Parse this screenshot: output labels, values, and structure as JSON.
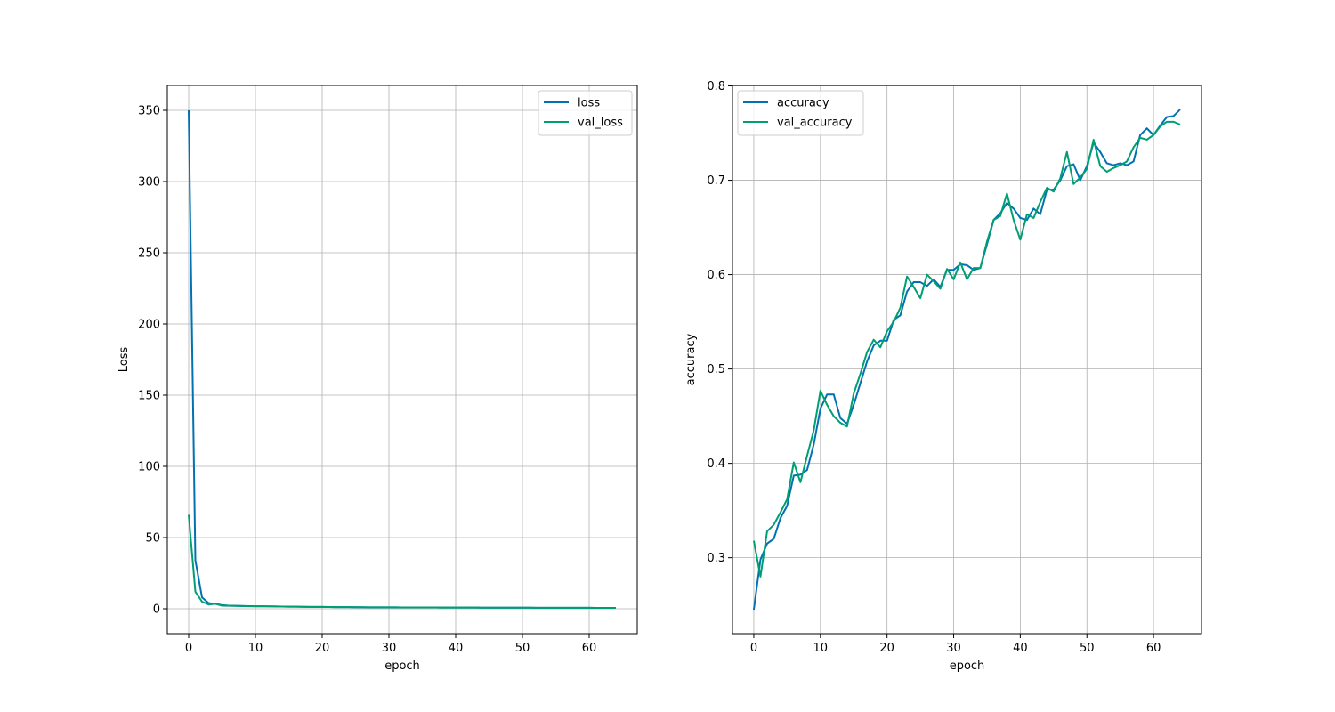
{
  "chart_data": [
    {
      "type": "line",
      "title": "",
      "xlabel": "epoch",
      "ylabel": "Loss",
      "xlim": [
        -3.2,
        67.2
      ],
      "ylim": [
        -17.5,
        367.5
      ],
      "xticks": [
        0,
        10,
        20,
        30,
        40,
        50,
        60
      ],
      "yticks": [
        0,
        50,
        100,
        150,
        200,
        250,
        300,
        350
      ],
      "xtick_labels": [
        "0",
        "10",
        "20",
        "30",
        "40",
        "50",
        "60"
      ],
      "ytick_labels": [
        "0",
        "50",
        "100",
        "150",
        "200",
        "250",
        "300",
        "350"
      ],
      "grid": true,
      "legend_position": "top-right",
      "series": [
        {
          "name": "loss",
          "color": "#0072B2",
          "x": [
            0,
            1,
            2,
            3,
            4,
            5,
            6,
            7,
            8,
            9,
            10,
            11,
            12,
            13,
            14,
            15,
            16,
            17,
            18,
            19,
            20,
            21,
            22,
            23,
            24,
            25,
            26,
            27,
            28,
            29,
            30,
            31,
            32,
            33,
            34,
            35,
            36,
            37,
            38,
            39,
            40,
            41,
            42,
            43,
            44,
            45,
            46,
            47,
            48,
            49,
            50,
            51,
            52,
            53,
            54,
            55,
            56,
            57,
            58,
            59,
            60,
            61,
            62,
            63,
            64
          ],
          "y": [
            350,
            34,
            8,
            4,
            3.5,
            2.6,
            2.2,
            2.1,
            2.0,
            1.9,
            1.8,
            1.8,
            1.7,
            1.7,
            1.6,
            1.5,
            1.45,
            1.4,
            1.35,
            1.3,
            1.3,
            1.25,
            1.2,
            1.2,
            1.15,
            1.1,
            1.1,
            1.05,
            1.05,
            1.0,
            1.0,
            0.98,
            0.96,
            0.95,
            0.93,
            0.92,
            0.9,
            0.9,
            0.88,
            0.87,
            0.86,
            0.85,
            0.84,
            0.83,
            0.82,
            0.81,
            0.8,
            0.79,
            0.78,
            0.77,
            0.76,
            0.75,
            0.74,
            0.73,
            0.72,
            0.71,
            0.7,
            0.7,
            0.69,
            0.68,
            0.67,
            0.66,
            0.65,
            0.64,
            0.63
          ]
        },
        {
          "name": "val_loss",
          "color": "#009E73",
          "x": [
            0,
            1,
            2,
            3,
            4,
            5,
            6,
            7,
            8,
            9,
            10,
            11,
            12,
            13,
            14,
            15,
            16,
            17,
            18,
            19,
            20,
            21,
            22,
            23,
            24,
            25,
            26,
            27,
            28,
            29,
            30,
            31,
            32,
            33,
            34,
            35,
            36,
            37,
            38,
            39,
            40,
            41,
            42,
            43,
            44,
            45,
            46,
            47,
            48,
            49,
            50,
            51,
            52,
            53,
            54,
            55,
            56,
            57,
            58,
            59,
            60,
            61,
            62,
            63,
            64
          ],
          "y": [
            66,
            12,
            5,
            3,
            3.5,
            2.2,
            2.1,
            2.0,
            1.9,
            1.8,
            1.7,
            1.75,
            1.7,
            1.6,
            1.55,
            1.5,
            1.45,
            1.4,
            1.35,
            1.3,
            1.3,
            1.25,
            1.2,
            1.2,
            1.15,
            1.1,
            1.1,
            1.05,
            1.05,
            1.0,
            1.0,
            0.98,
            0.96,
            0.95,
            0.93,
            0.92,
            0.9,
            0.9,
            0.88,
            0.87,
            0.86,
            0.85,
            0.84,
            0.83,
            0.82,
            0.81,
            0.8,
            0.79,
            0.78,
            0.77,
            0.76,
            0.75,
            0.74,
            0.73,
            0.72,
            0.71,
            0.7,
            0.7,
            0.69,
            0.68,
            0.67,
            0.66,
            0.65,
            0.64,
            0.63
          ]
        }
      ]
    },
    {
      "type": "line",
      "title": "",
      "xlabel": "epoch",
      "ylabel": "accuracy",
      "xlim": [
        -3.2,
        67.2
      ],
      "ylim": [
        0.2195,
        0.8005
      ],
      "xticks": [
        0,
        10,
        20,
        30,
        40,
        50,
        60
      ],
      "yticks": [
        0.3,
        0.4,
        0.5,
        0.6,
        0.7,
        0.8
      ],
      "xtick_labels": [
        "0",
        "10",
        "20",
        "30",
        "40",
        "50",
        "60"
      ],
      "ytick_labels": [
        "0.3",
        "0.4",
        "0.5",
        "0.6",
        "0.7",
        "0.8"
      ],
      "grid": true,
      "legend_position": "top-left",
      "series": [
        {
          "name": "accuracy",
          "color": "#0072B2",
          "x": [
            0,
            1,
            2,
            3,
            4,
            5,
            6,
            7,
            8,
            9,
            10,
            11,
            12,
            13,
            14,
            15,
            16,
            17,
            18,
            19,
            20,
            21,
            22,
            23,
            24,
            25,
            26,
            27,
            28,
            29,
            30,
            31,
            32,
            33,
            34,
            35,
            36,
            37,
            38,
            39,
            40,
            41,
            42,
            43,
            44,
            45,
            46,
            47,
            48,
            49,
            50,
            51,
            52,
            53,
            54,
            55,
            56,
            57,
            58,
            59,
            60,
            61,
            62,
            63,
            64
          ],
          "y": [
            0.245,
            0.298,
            0.315,
            0.32,
            0.342,
            0.355,
            0.387,
            0.388,
            0.393,
            0.42,
            0.458,
            0.473,
            0.473,
            0.448,
            0.442,
            0.462,
            0.485,
            0.508,
            0.525,
            0.53,
            0.53,
            0.552,
            0.557,
            0.582,
            0.592,
            0.592,
            0.588,
            0.595,
            0.587,
            0.605,
            0.605,
            0.611,
            0.61,
            0.605,
            0.607,
            0.632,
            0.658,
            0.665,
            0.676,
            0.67,
            0.66,
            0.658,
            0.67,
            0.664,
            0.69,
            0.69,
            0.7,
            0.715,
            0.717,
            0.7,
            0.715,
            0.74,
            0.73,
            0.718,
            0.716,
            0.718,
            0.716,
            0.72,
            0.748,
            0.755,
            0.748,
            0.758,
            0.767,
            0.768,
            0.775
          ]
        },
        {
          "name": "val_accuracy",
          "color": "#009E73",
          "x": [
            0,
            1,
            2,
            3,
            4,
            5,
            6,
            7,
            8,
            9,
            10,
            11,
            12,
            13,
            14,
            15,
            16,
            17,
            18,
            19,
            20,
            21,
            22,
            23,
            24,
            25,
            26,
            27,
            28,
            29,
            30,
            31,
            32,
            33,
            34,
            35,
            36,
            37,
            38,
            39,
            40,
            41,
            42,
            43,
            44,
            45,
            46,
            47,
            48,
            49,
            50,
            51,
            52,
            53,
            54,
            55,
            56,
            57,
            58,
            59,
            60,
            61,
            62,
            63,
            64
          ],
          "y": [
            0.318,
            0.28,
            0.328,
            0.335,
            0.348,
            0.362,
            0.401,
            0.38,
            0.408,
            0.435,
            0.477,
            0.462,
            0.45,
            0.443,
            0.439,
            0.474,
            0.495,
            0.518,
            0.531,
            0.523,
            0.54,
            0.55,
            0.565,
            0.598,
            0.587,
            0.575,
            0.6,
            0.593,
            0.585,
            0.606,
            0.595,
            0.613,
            0.595,
            0.607,
            0.607,
            0.635,
            0.658,
            0.662,
            0.686,
            0.658,
            0.637,
            0.664,
            0.66,
            0.677,
            0.692,
            0.688,
            0.702,
            0.73,
            0.696,
            0.703,
            0.712,
            0.743,
            0.715,
            0.709,
            0.713,
            0.716,
            0.72,
            0.735,
            0.745,
            0.743,
            0.748,
            0.757,
            0.762,
            0.762,
            0.759
          ]
        }
      ]
    }
  ]
}
